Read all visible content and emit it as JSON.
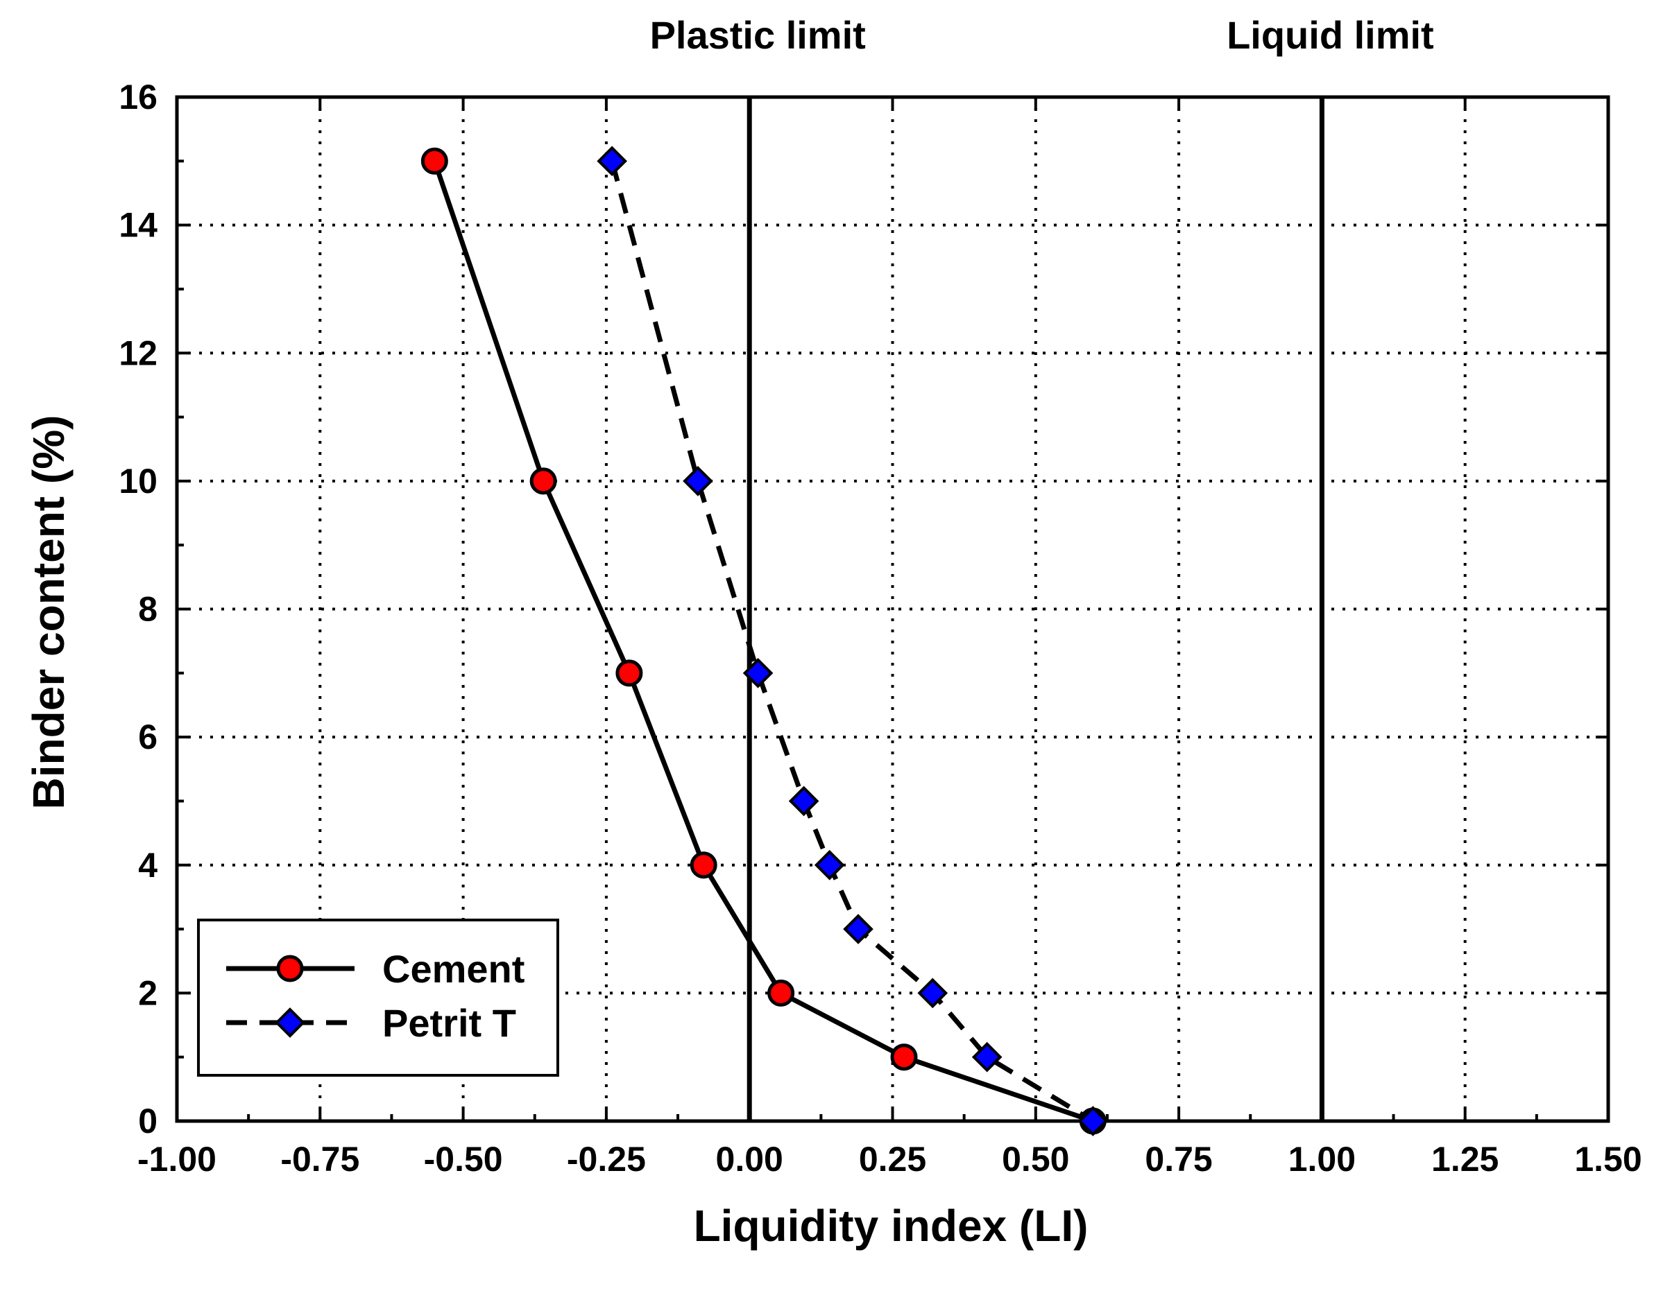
{
  "chart_data": {
    "type": "line",
    "xlabel": "Liquidity index (LI)",
    "ylabel": "Binder content (%)",
    "xlim": [
      -1.0,
      1.5
    ],
    "ylim": [
      0,
      16
    ],
    "x_ticks": [
      -1.0,
      -0.75,
      -0.5,
      -0.25,
      0.0,
      0.25,
      0.5,
      0.75,
      1.0,
      1.25,
      1.5
    ],
    "x_tick_labels": [
      "-1.00",
      "-0.75",
      "-0.50",
      "-0.25",
      "0.00",
      "0.25",
      "0.50",
      "0.75",
      "1.00",
      "1.25",
      "1.50"
    ],
    "y_ticks": [
      0,
      2,
      4,
      6,
      8,
      10,
      12,
      14,
      16
    ],
    "y_tick_labels": [
      "0",
      "2",
      "4",
      "6",
      "8",
      "10",
      "12",
      "14",
      "16"
    ],
    "grid": true,
    "reference_lines": [
      {
        "x": 0.0,
        "label": "Plastic limit"
      },
      {
        "x": 1.0,
        "label": "Liquid limit"
      }
    ],
    "legend_position": "bottom-left",
    "series": [
      {
        "name": "Cement",
        "style": "solid",
        "marker": "circle",
        "color": "#ff0000",
        "points": [
          {
            "x": -0.55,
            "y": 15
          },
          {
            "x": -0.36,
            "y": 10
          },
          {
            "x": -0.21,
            "y": 7
          },
          {
            "x": -0.08,
            "y": 4
          },
          {
            "x": 0.055,
            "y": 2
          },
          {
            "x": 0.27,
            "y": 1
          },
          {
            "x": 0.6,
            "y": 0
          }
        ]
      },
      {
        "name": "Petrit T",
        "style": "dashed",
        "marker": "diamond",
        "color": "#0000ff",
        "points": [
          {
            "x": -0.24,
            "y": 15
          },
          {
            "x": -0.09,
            "y": 10
          },
          {
            "x": 0.015,
            "y": 7
          },
          {
            "x": 0.095,
            "y": 5
          },
          {
            "x": 0.14,
            "y": 4
          },
          {
            "x": 0.19,
            "y": 3
          },
          {
            "x": 0.32,
            "y": 2
          },
          {
            "x": 0.415,
            "y": 1
          },
          {
            "x": 0.6,
            "y": 0
          }
        ]
      }
    ]
  }
}
